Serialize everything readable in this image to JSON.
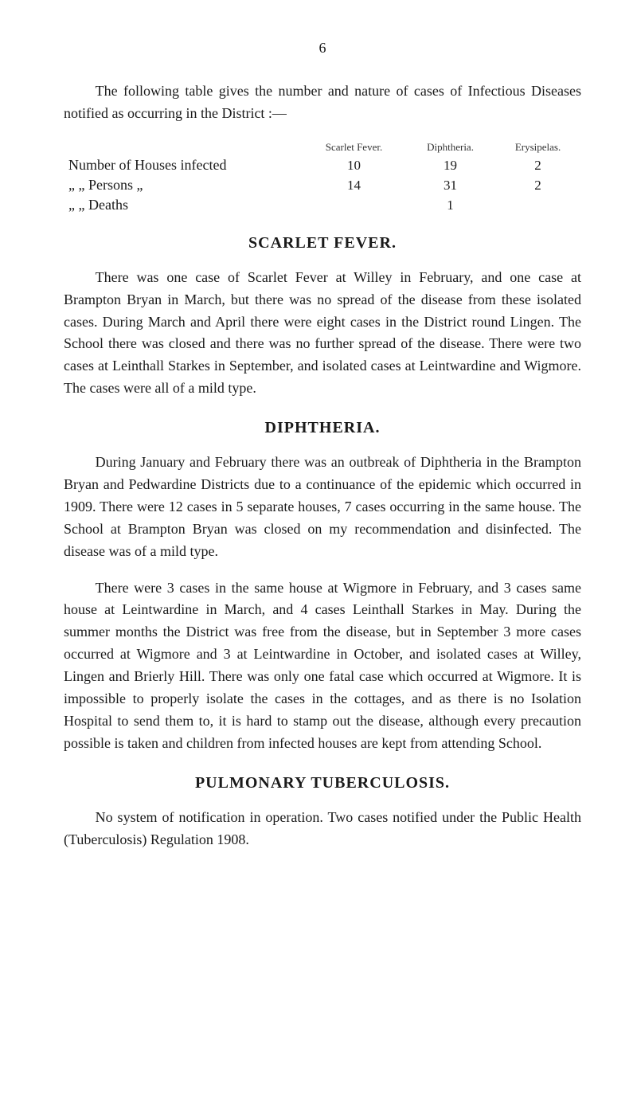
{
  "page_number": "6",
  "intro_paragraph": "The following table gives the number and nature of cases of Infectious Diseases notified as occurring in the District :—",
  "table": {
    "columns": [
      "",
      "Scarlet Fever.",
      "Diphtheria.",
      "Erysipelas."
    ],
    "rows": [
      {
        "label": "Number of Houses infected",
        "scarlet": "10",
        "diphtheria": "19",
        "erysipelas": "2"
      },
      {
        "label": "     „       „  Persons     „",
        "scarlet": "14",
        "diphtheria": "31",
        "erysipelas": "2"
      },
      {
        "label": "     „       „  Deaths",
        "scarlet": "",
        "diphtheria": "1",
        "erysipelas": ""
      }
    ]
  },
  "sections": {
    "scarlet": {
      "heading": "SCARLET FEVER.",
      "paragraphs": [
        "There was one case of Scarlet Fever at Willey in February, and one case at Brampton Bryan in March, but there was no spread of the disease from these isolated cases. During March and April there were eight cases in the District round Lingen. The School there was closed and there was no further spread of the disease. There were two cases at Leinthall Starkes in September, and isolated cases at Leintwardine and Wigmore. The cases were all of a mild type."
      ]
    },
    "diphtheria": {
      "heading": "DIPHTHERIA.",
      "paragraphs": [
        "During January and February there was an outbreak of Diphtheria in the Brampton Bryan and Pedwardine Districts due to a continuance of the epidemic which occurred in 1909. There were 12 cases in 5 separate houses, 7 cases occurring in the same house. The School at Brampton Bryan was closed on my recommendation and disinfected. The disease was of a mild type.",
        "There were 3 cases in the same house at Wigmore in February, and 3 cases same house at Leintwardine in March, and 4 cases Leinthall Starkes in May. During the summer months the District was free from the disease, but in September 3 more cases occurred at Wigmore and 3 at Leintwardine in October, and isolated cases at Willey, Lingen and Brierly Hill. There was only one fatal case which occurred at Wigmore. It is impossible to properly isolate the cases in the cottages, and as there is no Isolation Hospital to send them to, it is hard to stamp out the disease, although every precaution possible is taken and children from infected houses are kept from attending School."
      ]
    },
    "tuberculosis": {
      "heading": "PULMONARY TUBERCULOSIS.",
      "paragraphs": [
        "No system of notification in operation. Two cases notified under the Public Health (Tuberculosis) Regulation 1908."
      ]
    }
  }
}
